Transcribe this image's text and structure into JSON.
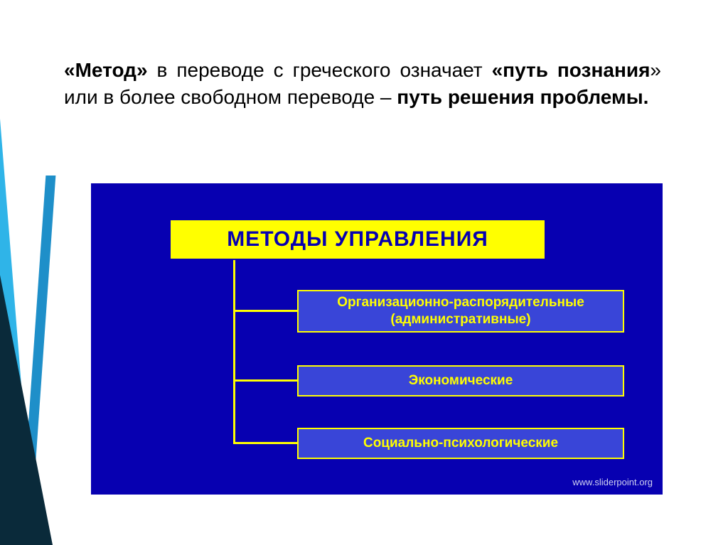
{
  "text": {
    "p1_bold_open": "«Метод»",
    "p1_a": " в переводе с греческого означает ",
    "p1_bold_mid": "«путь познания",
    "p1_b": "» или в более свободном переводе – ",
    "p1_bold_end": "путь решения проблемы."
  },
  "diagram": {
    "background_color": "#0700b1",
    "title": {
      "label": "МЕТОДЫ УПРАВЛЕНИЯ",
      "bg_color": "#ffff00",
      "text_color": "#0700b1",
      "fontsize": 30
    },
    "children": [
      {
        "line1": "Организационно-распорядительные",
        "line2": "(административные)"
      },
      {
        "line1": "Экономические",
        "line2": ""
      },
      {
        "line1": "Социально-психологические",
        "line2": ""
      }
    ],
    "child_style": {
      "bg_color": "#3945d8",
      "border_color": "#ffff00",
      "text_color": "#ffff00",
      "fontsize": 19
    },
    "connector_color": "#ffff00",
    "watermark": "www.sliderpoint.org"
  },
  "accent_colors": {
    "light_blue": "#2fb4e8",
    "mid_blue": "#1e8fc9",
    "dark": "#0a2a3a"
  }
}
